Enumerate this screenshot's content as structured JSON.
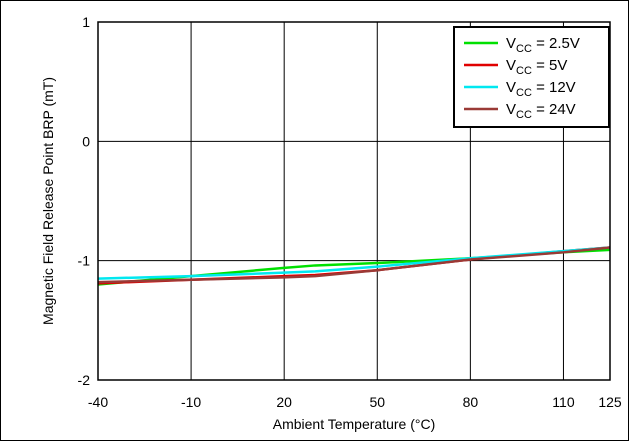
{
  "chart_data": {
    "type": "line",
    "title": "",
    "xlabel": "Ambient Temperature (°C)",
    "ylabel": "Magnetic Field Release Point BRP (mT)",
    "xlim": [
      -40,
      125
    ],
    "ylim": [
      -2,
      1
    ],
    "xticks": [
      -40,
      -10,
      20,
      50,
      80,
      110,
      125
    ],
    "xtick_labels": [
      "-40",
      "-10",
      "20",
      "50",
      "80",
      "110",
      "125"
    ],
    "yticks": [
      -2,
      -1,
      0,
      1
    ],
    "ytick_labels": [
      "-2",
      "-1",
      "0",
      "1"
    ],
    "grid": true,
    "legend_position": "top-right",
    "series": [
      {
        "name": "V",
        "sub": "CC",
        "suffix": " = 2.5V",
        "color": "#00e000",
        "x": [
          -40,
          -10,
          20,
          30,
          50,
          80,
          110,
          125
        ],
        "y": [
          -1.2,
          -1.13,
          -1.06,
          -1.04,
          -1.02,
          -0.98,
          -0.93,
          -0.91
        ]
      },
      {
        "name": "V",
        "sub": "CC",
        "suffix": " = 5V",
        "color": "#e00000",
        "x": [
          -40,
          -10,
          20,
          30,
          50,
          80,
          110,
          125
        ],
        "y": [
          -1.19,
          -1.16,
          -1.13,
          -1.12,
          -1.08,
          -0.99,
          -0.92,
          -0.89
        ]
      },
      {
        "name": "V",
        "sub": "CC",
        "suffix": " = 12V",
        "color": "#00e8f0",
        "x": [
          -40,
          -10,
          20,
          30,
          50,
          80,
          110,
          125
        ],
        "y": [
          -1.15,
          -1.13,
          -1.1,
          -1.09,
          -1.05,
          -0.98,
          -0.92,
          -0.89
        ]
      },
      {
        "name": "V",
        "sub": "CC",
        "suffix": " = 24V",
        "color": "#9a3a36",
        "x": [
          -40,
          -10,
          20,
          30,
          50,
          80,
          110,
          125
        ],
        "y": [
          -1.18,
          -1.16,
          -1.14,
          -1.13,
          -1.08,
          -0.99,
          -0.93,
          -0.89
        ]
      }
    ]
  }
}
